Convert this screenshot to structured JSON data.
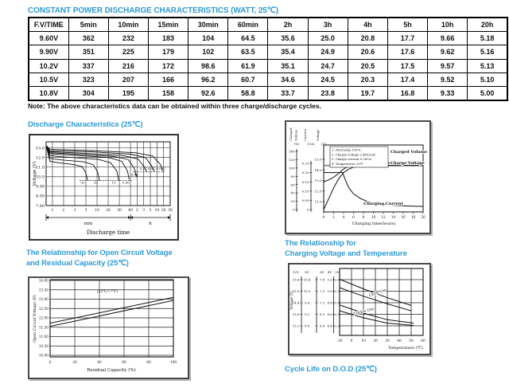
{
  "page": {
    "table_title": "CONSTANT POWER DISCHARGE CHARACTERISTICS (WATT, 25℃)",
    "note": "Note: The above characteristics data can be obtained within three charge/discharge cycles."
  },
  "table": {
    "headers": [
      "F.V/TIME",
      "5min",
      "10min",
      "15min",
      "30min",
      "60min",
      "2h",
      "3h",
      "4h",
      "5h",
      "10h",
      "20h"
    ],
    "rows": [
      {
        "label": "9.60V",
        "values": [
          "362",
          "232",
          "183",
          "104",
          "64.5",
          "35.6",
          "25.0",
          "20.8",
          "17.7",
          "9.66",
          "5.18"
        ]
      },
      {
        "label": "9.90V",
        "values": [
          "351",
          "225",
          "179",
          "102",
          "63.5",
          "35.4",
          "24.9",
          "20.6",
          "17.6",
          "9.62",
          "5.16"
        ]
      },
      {
        "label": "10.2V",
        "values": [
          "337",
          "216",
          "172",
          "98.6",
          "61.9",
          "35.1",
          "24.7",
          "20.5",
          "17.5",
          "9.57",
          "5.13"
        ]
      },
      {
        "label": "10.5V",
        "values": [
          "323",
          "207",
          "166",
          "96.2",
          "60.7",
          "34.6",
          "24.5",
          "20.3",
          "17.4",
          "9.52",
          "5.10"
        ]
      },
      {
        "label": "10.8V",
        "values": [
          "304",
          "195",
          "158",
          "92.6",
          "58.8",
          "33.7",
          "23.8",
          "19.7",
          "16.8",
          "9.33",
          "5.00"
        ]
      }
    ]
  },
  "chart_data": {
    "discharge": {
      "type": "line",
      "title": "Discharge Characteristics (25℃)",
      "ylabel": "Voltage (V)",
      "xlabel": "Discharge time",
      "x_sections": [
        {
          "label": "min",
          "ticks": [
            "1",
            "2",
            "3",
            "5",
            "10",
            "20",
            "30",
            "60"
          ]
        },
        {
          "label": "h",
          "ticks": [
            "2",
            "3",
            "5",
            "10",
            "20",
            "30"
          ]
        }
      ],
      "yticks": [
        {
          "v": 13,
          "t": "13.0"
        },
        {
          "v": 12,
          "t": "12.0"
        },
        {
          "v": 11,
          "t": "11.0"
        },
        {
          "v": 10,
          "t": "10.0"
        },
        {
          "v": 9,
          "t": "9.00"
        },
        {
          "v": 8,
          "t": "8.00"
        },
        {
          "v": 7,
          "t": "7.00"
        }
      ],
      "ylim": [
        7,
        13.4
      ],
      "series": [
        {
          "name": "3C",
          "points": [
            [
              0.005,
              13.0
            ],
            [
              0.03,
              11.6
            ],
            [
              0.1,
              11.45
            ],
            [
              0.22,
              11.28
            ],
            [
              0.29,
              11.05
            ],
            [
              0.32,
              10.4
            ],
            [
              0.335,
              9.6
            ]
          ]
        },
        {
          "name": "2C",
          "points": [
            [
              0.005,
              13.0
            ],
            [
              0.03,
              11.9
            ],
            [
              0.12,
              11.75
            ],
            [
              0.3,
              11.55
            ],
            [
              0.38,
              11.25
            ],
            [
              0.415,
              10.5
            ],
            [
              0.43,
              9.6
            ]
          ]
        },
        {
          "name": "1C",
          "points": [
            [
              0.005,
              13.05
            ],
            [
              0.03,
              12.2
            ],
            [
              0.15,
              12.05
            ],
            [
              0.42,
              11.8
            ],
            [
              0.52,
              11.45
            ],
            [
              0.57,
              10.6
            ],
            [
              0.585,
              9.6
            ]
          ]
        },
        {
          "name": "0.6C",
          "points": [
            [
              0.005,
              13.05
            ],
            [
              0.03,
              12.4
            ],
            [
              0.2,
              12.25
            ],
            [
              0.5,
              12.0
            ],
            [
              0.61,
              11.6
            ],
            [
              0.655,
              10.6
            ],
            [
              0.67,
              9.7
            ]
          ]
        },
        {
          "name": "0.4C",
          "points": [
            [
              0.005,
              13.1
            ],
            [
              0.03,
              12.5
            ],
            [
              0.25,
              12.35
            ],
            [
              0.55,
              12.1
            ],
            [
              0.66,
              11.8
            ],
            [
              0.71,
              10.9
            ],
            [
              0.73,
              9.95
            ]
          ]
        },
        {
          "name": "0.2C",
          "points": [
            [
              0.005,
              13.1
            ],
            [
              0.03,
              12.6
            ],
            [
              0.3,
              12.45
            ],
            [
              0.62,
              12.2
            ],
            [
              0.74,
              11.85
            ],
            [
              0.79,
              11.05
            ],
            [
              0.81,
              10.5
            ]
          ]
        },
        {
          "name": "0.1C",
          "points": [
            [
              0.005,
              13.15
            ],
            [
              0.03,
              12.7
            ],
            [
              0.35,
              12.6
            ],
            [
              0.68,
              12.35
            ],
            [
              0.8,
              12.0
            ],
            [
              0.85,
              11.15
            ],
            [
              0.87,
              10.55
            ]
          ]
        },
        {
          "name": "0.05C",
          "points": [
            [
              0.005,
              13.2
            ],
            [
              0.03,
              12.85
            ],
            [
              0.4,
              12.7
            ],
            [
              0.72,
              12.5
            ],
            [
              0.86,
              12.15
            ],
            [
              0.92,
              11.3
            ],
            [
              0.94,
              10.6
            ]
          ]
        }
      ],
      "dotted_lines": [
        [
          [
            0.27,
            9.6
          ],
          [
            0.69,
            9.6
          ]
        ],
        [
          [
            0.7,
            10.5
          ],
          [
            0.955,
            10.5
          ]
        ]
      ],
      "labels": [
        {
          "t": "3C",
          "x": 0.295,
          "y": 9.3
        },
        {
          "t": "2C",
          "x": 0.4,
          "y": 9.3
        },
        {
          "t": "1C",
          "x": 0.545,
          "y": 9.3
        },
        {
          "t": "0.6C",
          "x": 0.645,
          "y": 9.3
        },
        {
          "t": "0.4C",
          "x": 0.715,
          "y": 10.1
        },
        {
          "t": "0.2C",
          "x": 0.785,
          "y": 10.75
        },
        {
          "t": "0.1C",
          "x": 0.85,
          "y": 10.75
        },
        {
          "t": "0.05C",
          "x": 0.925,
          "y": 10.75
        }
      ]
    },
    "charge": {
      "type": "line",
      "axes": [
        {
          "title": [
            "Charged",
            "Volume"
          ],
          "unit": "(%)",
          "ticks": [
            "140",
            "120",
            "100",
            "80",
            "60",
            "40",
            "20",
            "0"
          ]
        },
        {
          "title": [
            "Current"
          ],
          "unit": "(CA)",
          "ticks": [
            "0.25",
            "0.20",
            "0.15",
            "0.10",
            "0.05",
            "0"
          ]
        },
        {
          "title": [
            "Voltage"
          ],
          "unit": "(V)",
          "ticks": [
            "15.0",
            "14.0",
            "13.0",
            "12.0",
            "11.0"
          ]
        }
      ],
      "xticks": [
        "0",
        "2",
        "4",
        "6",
        "8",
        "10",
        "12",
        "14",
        "16",
        "18",
        "20"
      ],
      "xlabel": "Charging time(hours)",
      "legend": [
        "1. Discharge 100%",
        "2. Charge voltage 2.40V/cell",
        "3. Charge current 0.20CA",
        "4. Temperature 25℃"
      ],
      "series": {
        "charged_volume": {
          "label": "Charged Volume",
          "points": [
            [
              0,
              0
            ],
            [
              1,
              26
            ],
            [
              2,
              52
            ],
            [
              3,
              74
            ],
            [
              4,
              89
            ],
            [
              5,
              97
            ],
            [
              6,
              102
            ],
            [
              8,
              107
            ],
            [
              10,
              110
            ],
            [
              13,
              112
            ],
            [
              16,
              114
            ],
            [
              20,
              115
            ]
          ]
        },
        "charge_voltage": {
          "label": "Charge Voltage",
          "points": [
            [
              0,
              12.85
            ],
            [
              1,
              13.05
            ],
            [
              2,
              13.3
            ],
            [
              3,
              13.65
            ],
            [
              3.8,
              14.0
            ],
            [
              4.5,
              14.22
            ],
            [
              5.5,
              14.33
            ],
            [
              7,
              14.4
            ],
            [
              20,
              14.4
            ]
          ]
        },
        "charge_voltage_ref": 14.4,
        "charging_current": {
          "label": "Charging Current",
          "points": [
            [
              0,
              0.2
            ],
            [
              3.8,
              0.2
            ],
            [
              4.2,
              0.17
            ],
            [
              5,
              0.12
            ],
            [
              6,
              0.085
            ],
            [
              7.5,
              0.058
            ],
            [
              9,
              0.042
            ],
            [
              11,
              0.03
            ],
            [
              14,
              0.023
            ],
            [
              17,
              0.019
            ],
            [
              20,
              0.017
            ]
          ]
        }
      }
    },
    "ocv": {
      "type": "line",
      "title_lines": [
        "The Relationship for Open Circuit Voltage",
        "and Residual Capacity (25℃)"
      ],
      "ylabel": "Open Circuit Voltage (V)",
      "xlabel": "Residual Capacity (%)",
      "yticks": [
        {
          "v": 14,
          "t": "14.00"
        },
        {
          "v": 13.5,
          "t": "13.50"
        },
        {
          "v": 13,
          "t": "13.00"
        },
        {
          "v": 12.5,
          "t": "12.50"
        },
        {
          "v": 12,
          "t": "12.00"
        },
        {
          "v": 11.5,
          "t": "11.50"
        },
        {
          "v": 11,
          "t": "11.00"
        },
        {
          "v": 10.5,
          "t": "10.50"
        },
        {
          "v": 10,
          "t": "10.00"
        }
      ],
      "xticks": [
        {
          "v": 0,
          "t": "0"
        },
        {
          "v": 20,
          "t": "20"
        },
        {
          "v": 40,
          "t": "40"
        },
        {
          "v": 60,
          "t": "60"
        },
        {
          "v": 80,
          "t": "80"
        },
        {
          "v": 100,
          "t": "100"
        }
      ],
      "annotation": "(25℃/77℉)",
      "lines": [
        [
          [
            0,
            11.72
          ],
          [
            100,
            13.1
          ]
        ],
        [
          [
            0,
            11.55
          ],
          [
            100,
            12.93
          ]
        ]
      ]
    },
    "cvt": {
      "type": "line",
      "title_lines": [
        "The Relationship for",
        "Charging Voltage and Temperature"
      ],
      "ylabel": "Voltage (V)",
      "xlabel": "Temperature (℃)",
      "scale_headers": [
        "12V",
        "8V",
        "6V",
        "4V",
        "2V"
      ],
      "scales": [
        [
          "15.6",
          "15.0",
          "14.4",
          "13.8",
          "13.2"
        ],
        [
          "10.4",
          "10.0",
          "9.6",
          "9.2",
          "8.8"
        ],
        [
          "7.8",
          "7.5",
          "7.2",
          "6.9",
          "6.6"
        ],
        [
          "5.2",
          "5.0",
          "4.8",
          "4.6",
          "4.4"
        ],
        [
          "2.6",
          "2.5",
          "2.4",
          "2.3",
          "2.2"
        ]
      ],
      "xticks": [
        {
          "v": -10,
          "t": "-10"
        },
        {
          "v": 0,
          "t": "0"
        },
        {
          "v": 10,
          "t": "10"
        },
        {
          "v": 20,
          "t": "20"
        },
        {
          "v": 30,
          "t": "30"
        },
        {
          "v": 40,
          "t": "40"
        },
        {
          "v": 50,
          "t": "50"
        },
        {
          "v": 60,
          "t": "60"
        }
      ],
      "bands": [
        {
          "label": "Cycle Use",
          "rot": -19,
          "lx": 15,
          "lv": 14.72,
          "lines": [
            [
              [
                -10,
                15.62
              ],
              [
                10,
                15.12
              ],
              [
                30,
                14.66
              ],
              [
                50,
                14.26
              ]
            ],
            [
              [
                -10,
                15.18
              ],
              [
                10,
                14.74
              ],
              [
                30,
                14.34
              ],
              [
                50,
                13.98
              ]
            ]
          ]
        },
        {
          "label": "Trickle Use",
          "rot": -15,
          "lx": 2,
          "lv": 13.76,
          "lines": [
            [
              [
                -10,
                14.28
              ],
              [
                10,
                13.86
              ],
              [
                30,
                13.52
              ],
              [
                52,
                13.34
              ]
            ],
            [
              [
                -10,
                13.98
              ],
              [
                10,
                13.62
              ],
              [
                30,
                13.34
              ],
              [
                52,
                13.22
              ]
            ]
          ]
        }
      ]
    },
    "cycle_life_title": "Cycle Life on D.O.D (25℃)"
  }
}
